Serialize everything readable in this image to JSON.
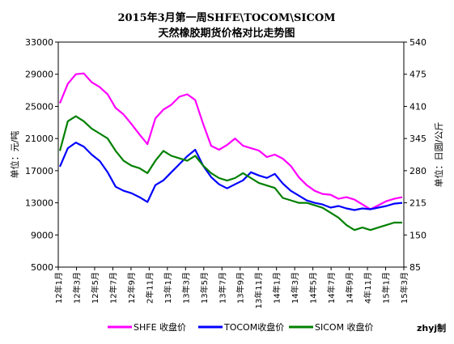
{
  "chart_data": {
    "type": "line",
    "title": "2015年3月第一周SHFE\\TOCOM\\SICOM",
    "subtitle": "天然橡胶期货价格对比走势图",
    "ylabel_left": "单位：元/吨",
    "ylabel_right": "单位：日圆/公斤",
    "ylim_left": [
      5000,
      33000
    ],
    "yticks_left": [
      "33000",
      "29000",
      "25000",
      "21000",
      "17000",
      "13000",
      "9000",
      "5000"
    ],
    "ylim_right": [
      85,
      540
    ],
    "yticks_right": [
      "540",
      "475",
      "410",
      "345",
      "280",
      "215",
      "150",
      "85"
    ],
    "x_tick_labels": [
      "12年1月",
      "12年3月",
      "12年5月",
      "12年7月",
      "12年9月",
      "2年11月",
      "13年1月",
      "13年3月",
      "13年5月",
      "13年7月",
      "13年9月",
      "13年11月",
      "14年1月",
      "14年3月",
      "14年5月",
      "14年7月",
      "14年9月",
      "4年11月",
      "15年1月",
      "15年3月"
    ],
    "grid": false,
    "legend_position": "bottom",
    "credit": "zhyj制",
    "series": [
      {
        "name": "SHFE 收盘价",
        "axis": "left",
        "color": "#ff00ff",
        "values": [
          25400,
          27800,
          29000,
          29100,
          28000,
          27400,
          26500,
          24800,
          24000,
          22800,
          21500,
          20300,
          23500,
          24600,
          25200,
          26200,
          26500,
          25800,
          22800,
          20100,
          19600,
          20200,
          21000,
          20100,
          19800,
          19500,
          18700,
          19000,
          18500,
          17600,
          16200,
          15200,
          14500,
          14100,
          14000,
          13500,
          13700,
          13400,
          12800,
          12200,
          12700,
          13200,
          13500,
          13700
        ]
      },
      {
        "name": "TOCOM收盘价",
        "axis": "left",
        "color": "#0000ff",
        "values": [
          17500,
          19800,
          20500,
          20000,
          19000,
          18200,
          16800,
          15000,
          14500,
          14200,
          13700,
          13100,
          15200,
          15800,
          16800,
          17800,
          18800,
          19600,
          17600,
          16200,
          15300,
          14800,
          15300,
          15800,
          16800,
          16400,
          16100,
          16600,
          15400,
          14500,
          13900,
          13300,
          13000,
          12800,
          12400,
          12600,
          12300,
          12100,
          12300,
          12200,
          12400,
          12600,
          12900,
          13000
        ]
      },
      {
        "name": "SICOM 收盘价",
        "axis": "right",
        "color": "#008000",
        "values": [
          320,
          380,
          390,
          380,
          365,
          355,
          345,
          320,
          300,
          290,
          285,
          275,
          300,
          320,
          310,
          305,
          300,
          310,
          290,
          275,
          265,
          260,
          265,
          275,
          265,
          255,
          250,
          245,
          225,
          220,
          215,
          215,
          210,
          205,
          195,
          185,
          170,
          160,
          165,
          160,
          165,
          170,
          175,
          175
        ]
      }
    ]
  }
}
